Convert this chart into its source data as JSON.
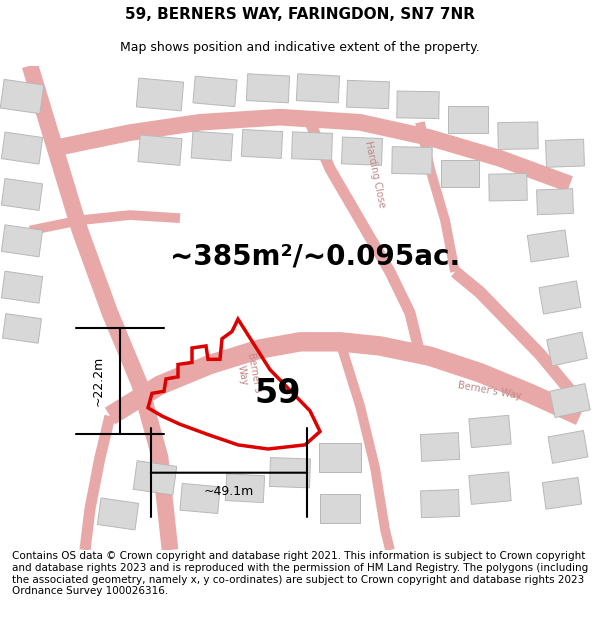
{
  "title": "59, BERNERS WAY, FARINGDON, SN7 7NR",
  "subtitle": "Map shows position and indicative extent of the property.",
  "area_text": "~385m²/~0.095ac.",
  "label_59": "59",
  "dim_width": "~49.1m",
  "dim_height": "~22.2m",
  "footer": "Contains OS data © Crown copyright and database right 2021. This information is subject to Crown copyright and database rights 2023 and is reproduced with the permission of HM Land Registry. The polygons (including the associated geometry, namely x, y co-ordinates) are subject to Crown copyright and database rights 2023 Ordnance Survey 100026316.",
  "bg_color": "#ffffff",
  "road_color": "#e8a8a8",
  "road_fill": "#f5e8e8",
  "building_color": "#d8d8d8",
  "building_edge": "#b8b8b8",
  "plot_color": "#dd0000",
  "title_fontsize": 11,
  "subtitle_fontsize": 9,
  "area_fontsize": 20,
  "label_fontsize": 24,
  "footer_fontsize": 7.5,
  "dim_fontsize": 9,
  "road_label_color": "#c08888",
  "road_label_fontsize": 7
}
